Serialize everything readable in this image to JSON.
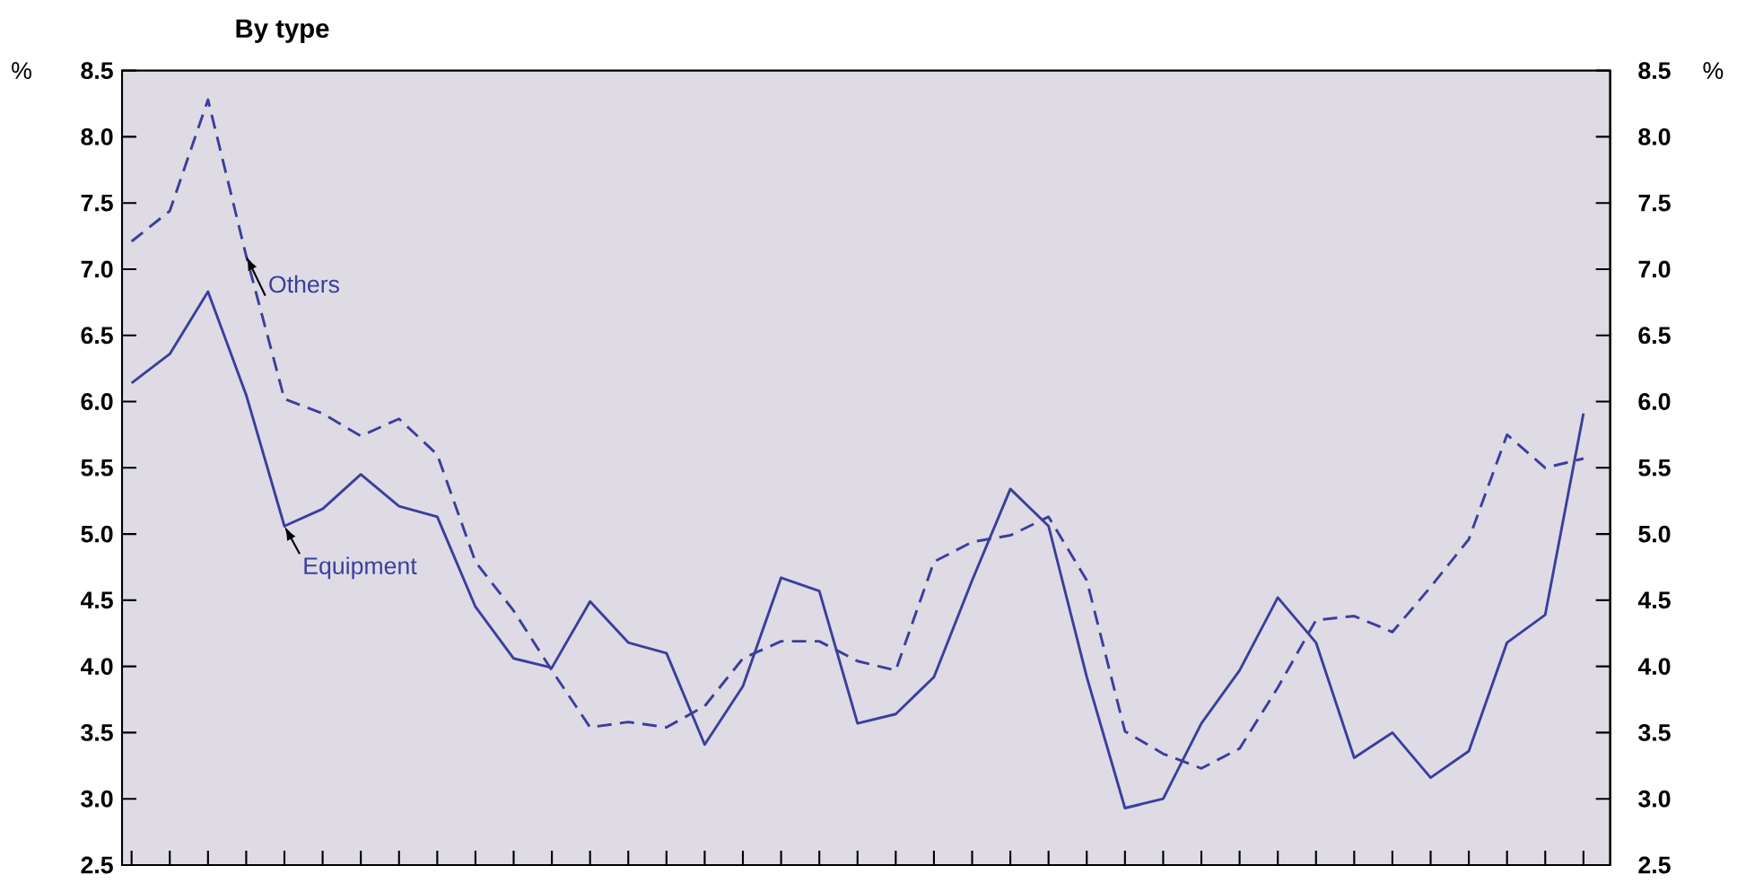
{
  "chart_data": {
    "type": "line",
    "title": "By type",
    "ylabel": "%",
    "y2label": "%",
    "categories": [
      null,
      null,
      null,
      null,
      null,
      null,
      null,
      null,
      null,
      null,
      null,
      null,
      null,
      null,
      null,
      null,
      null,
      null,
      null,
      null,
      null,
      null,
      null,
      null,
      null,
      null,
      null,
      null,
      null,
      null,
      null,
      null,
      null,
      null,
      null,
      null,
      null,
      null,
      null
    ],
    "series": [
      {
        "name": "Equipment",
        "color": "#3b3f9c",
        "line_style": "solid",
        "values": [
          6.14,
          6.36,
          6.83,
          6.05,
          5.06,
          5.19,
          5.45,
          5.21,
          5.13,
          4.45,
          4.06,
          3.99,
          4.49,
          4.18,
          4.1,
          3.41,
          3.85,
          4.67,
          4.57,
          3.57,
          3.64,
          3.92,
          4.65,
          5.34,
          5.06,
          3.92,
          2.93,
          3.0,
          3.57,
          3.97,
          4.52,
          4.18,
          3.31,
          3.5,
          3.16,
          3.36,
          4.18,
          4.39,
          5.91
        ]
      },
      {
        "name": "Others",
        "color": "#3b3f9c",
        "line_style": "dashed",
        "values": [
          7.21,
          7.44,
          8.28,
          7.1,
          6.02,
          5.91,
          5.74,
          5.87,
          5.6,
          4.79,
          4.42,
          3.97,
          3.54,
          3.58,
          3.54,
          3.7,
          4.06,
          4.19,
          4.19,
          4.04,
          3.97,
          4.79,
          4.94,
          4.99,
          5.13,
          4.65,
          3.51,
          3.34,
          3.23,
          3.38,
          3.84,
          4.35,
          4.38,
          4.26,
          4.6,
          4.96,
          5.75,
          5.5,
          5.57
        ]
      }
    ],
    "ylim": [
      2.5,
      8.5
    ],
    "yticks": [
      2.5,
      {
        "value": 3,
        "label": "3.0"
      },
      3.5,
      {
        "value": 4,
        "label": "4.0"
      },
      4.5,
      {
        "value": 5,
        "label": "5.0"
      },
      5.5,
      {
        "value": 6,
        "label": "6.0"
      },
      6.5,
      {
        "value": 7,
        "label": "7.0"
      },
      7.5,
      {
        "value": 8,
        "label": "8.0"
      },
      8.5
    ],
    "y2lim": [
      2.5,
      8.5
    ],
    "y2ticks": [
      2.5,
      {
        "value": 3,
        "label": "3.0"
      },
      3.5,
      {
        "value": 4,
        "label": "4.0"
      },
      4.5,
      {
        "value": 5,
        "label": "5.0"
      },
      5.5,
      {
        "value": 6,
        "label": "6.0"
      },
      6.5,
      {
        "value": 7,
        "label": "7.0"
      },
      7.5,
      {
        "value": 8,
        "label": "8.0"
      },
      8.5
    ],
    "tick_labels": "y",
    "grid": false,
    "legend": false,
    "marker": "none"
  }
}
